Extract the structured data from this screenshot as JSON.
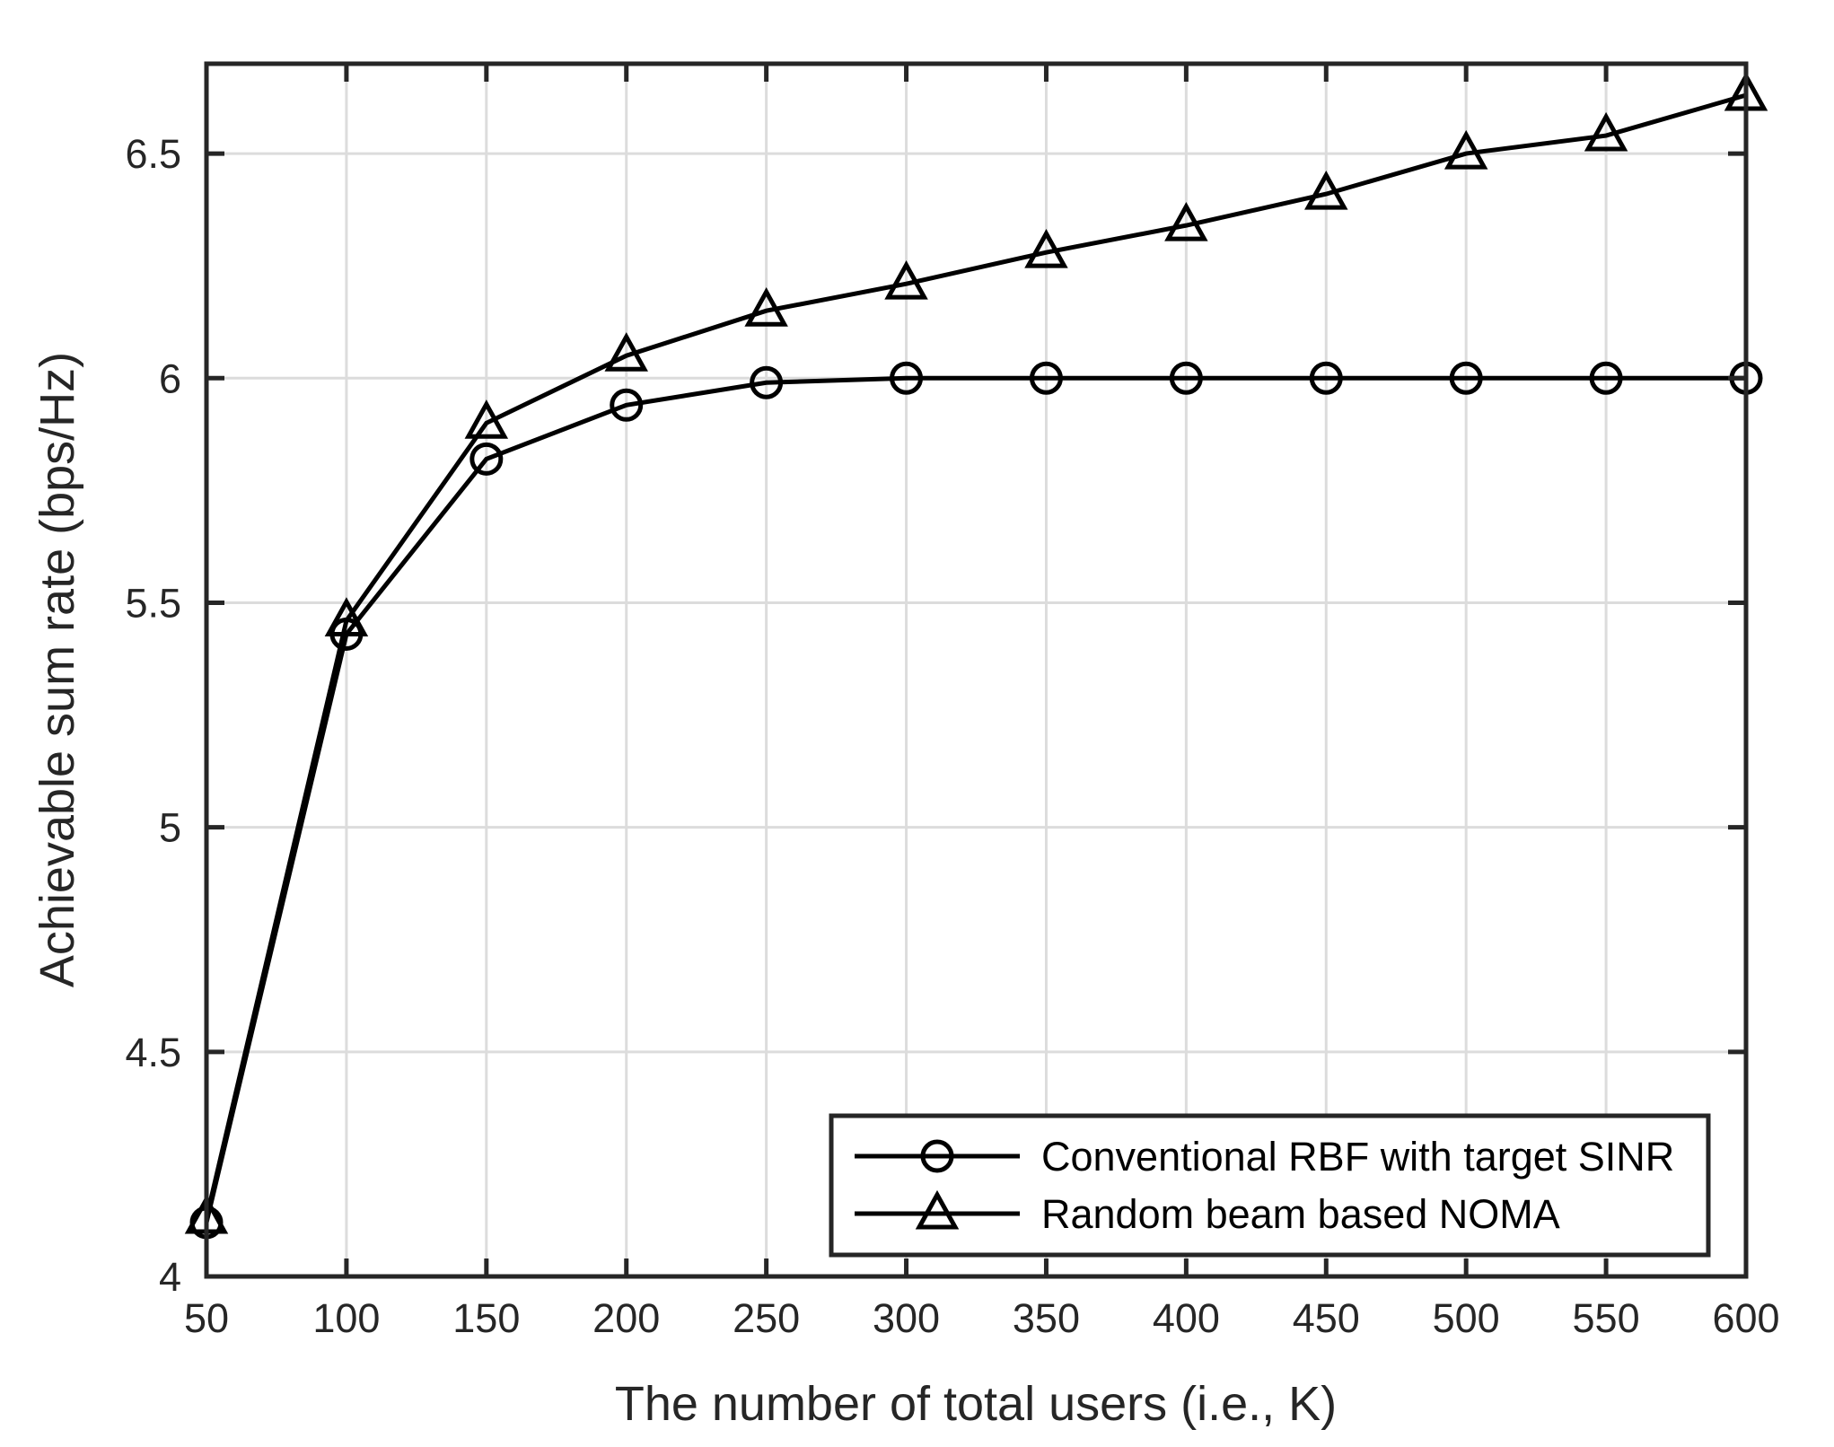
{
  "figure": {
    "background_color": "#ffffff",
    "axis_color": "#262626",
    "grid_color": "#dcdcdc",
    "line_color": "#000000"
  },
  "chart_data": {
    "type": "line",
    "title": "",
    "xlabel": "The number of total users (i.e., K)",
    "ylabel": "Achievable sum rate (bps/Hz)",
    "xlim": [
      50,
      600
    ],
    "ylim": [
      4,
      6.7
    ],
    "xticks": [
      50,
      100,
      150,
      200,
      250,
      300,
      350,
      400,
      450,
      500,
      550,
      600
    ],
    "yticks": [
      4,
      4.5,
      5,
      5.5,
      6,
      6.5
    ],
    "grid": true,
    "legend_position": "lower-right",
    "x": [
      50,
      100,
      150,
      200,
      250,
      300,
      350,
      400,
      450,
      500,
      550,
      600
    ],
    "series": [
      {
        "name": "Conventional RBF with target SINR",
        "marker": "circle",
        "values": [
          4.12,
          5.43,
          5.82,
          5.94,
          5.99,
          6.0,
          6.0,
          6.0,
          6.0,
          6.0,
          6.0,
          6.0
        ]
      },
      {
        "name": "Random beam based NOMA",
        "marker": "triangle",
        "values": [
          4.13,
          5.46,
          5.9,
          6.05,
          6.15,
          6.21,
          6.28,
          6.34,
          6.41,
          6.5,
          6.54,
          6.63
        ]
      }
    ]
  }
}
